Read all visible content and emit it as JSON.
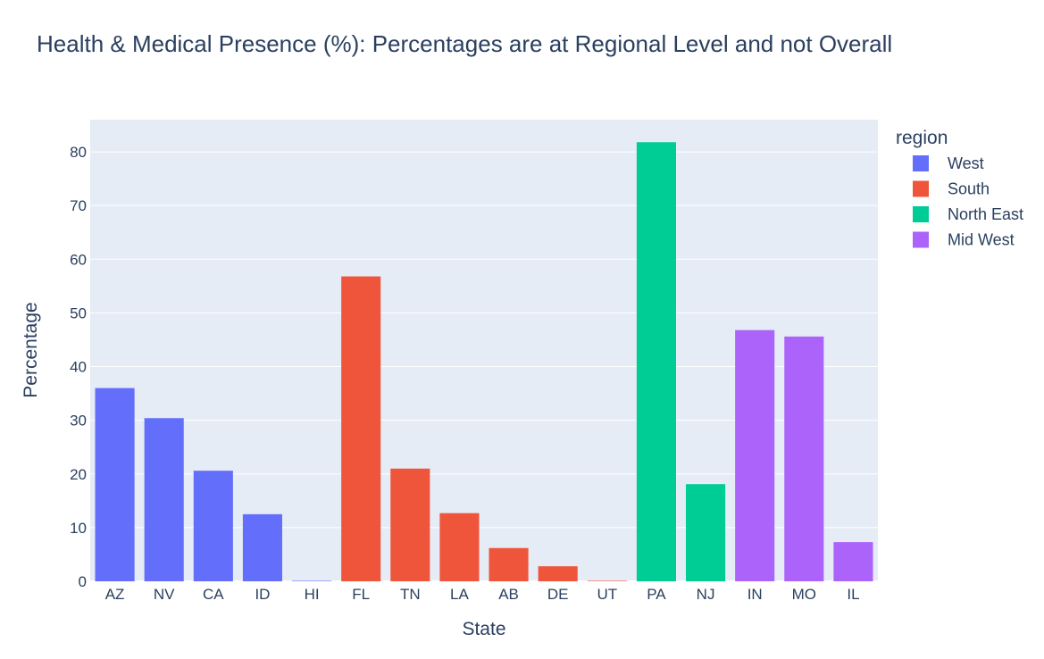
{
  "chart_data": {
    "type": "bar",
    "title": "Health & Medical Presence (%): Percentages are at Regional Level and not Overall",
    "xlabel": "State",
    "ylabel": "Percentage",
    "ylim": [
      0,
      86
    ],
    "yticks": [
      "0",
      "10",
      "20",
      "30",
      "40",
      "50",
      "60",
      "70",
      "80"
    ],
    "grid": true,
    "legend_title": "region",
    "legend_position": "right",
    "categories": [
      "AZ",
      "NV",
      "CA",
      "ID",
      "HI",
      "FL",
      "TN",
      "LA",
      "AB",
      "DE",
      "UT",
      "PA",
      "NJ",
      "IN",
      "MO",
      "IL"
    ],
    "series": [
      {
        "name": "West",
        "color": "#636efa",
        "points": [
          {
            "x": "AZ",
            "y": 36.0
          },
          {
            "x": "NV",
            "y": 30.4
          },
          {
            "x": "CA",
            "y": 20.6
          },
          {
            "x": "ID",
            "y": 12.5
          },
          {
            "x": "HI",
            "y": 0.1
          }
        ]
      },
      {
        "name": "South",
        "color": "#ef553b",
        "points": [
          {
            "x": "FL",
            "y": 56.8
          },
          {
            "x": "TN",
            "y": 21.0
          },
          {
            "x": "LA",
            "y": 12.7
          },
          {
            "x": "AB",
            "y": 6.2
          },
          {
            "x": "DE",
            "y": 2.8
          },
          {
            "x": "UT",
            "y": 0.1
          }
        ]
      },
      {
        "name": "North East",
        "color": "#00cc96",
        "points": [
          {
            "x": "PA",
            "y": 81.8
          },
          {
            "x": "NJ",
            "y": 18.1
          }
        ]
      },
      {
        "name": "Mid West",
        "color": "#ab63fa",
        "points": [
          {
            "x": "IN",
            "y": 46.8
          },
          {
            "x": "MO",
            "y": 45.6
          },
          {
            "x": "IL",
            "y": 7.3
          }
        ]
      }
    ]
  }
}
